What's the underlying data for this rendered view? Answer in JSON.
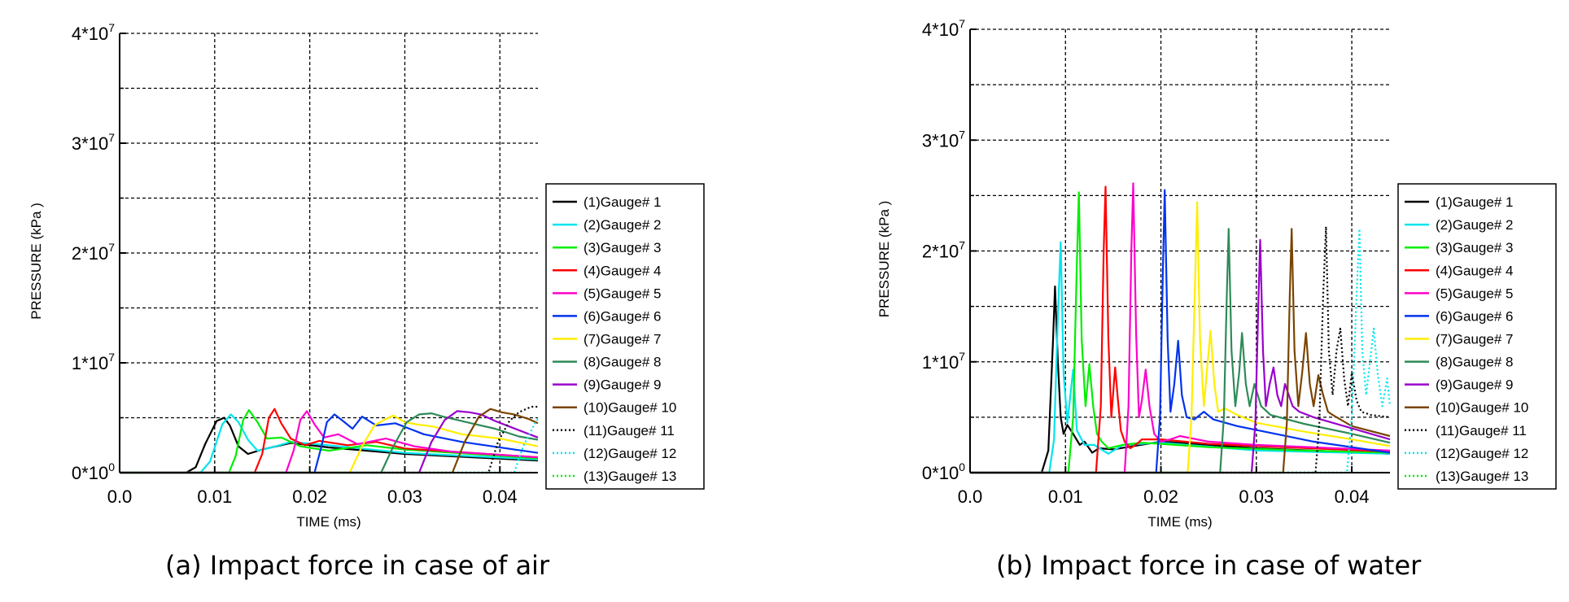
{
  "captions": {
    "air": "(a) Impact force in case of air",
    "water": "(b) Impact force in case of water"
  },
  "chart_data": [
    {
      "type": "line",
      "title": "",
      "caption": "(a) Impact force in case of air",
      "xlabel": "TIME (ms)",
      "ylabel": "PRESSURE (kPa )",
      "xlim": [
        0,
        0.044
      ],
      "ylim": [
        0,
        40000000
      ],
      "x_ticks": [
        "0.0",
        "0.01",
        "0.02",
        "0.03",
        "0.04"
      ],
      "y_ticks": [
        {
          "base": "0*10",
          "exp": "0"
        },
        {
          "base": "1*10",
          "exp": "7"
        },
        {
          "base": "2*10",
          "exp": "7"
        },
        {
          "base": "3*10",
          "exp": "7"
        },
        {
          "base": "4*10",
          "exp": "7"
        }
      ],
      "grid": "dashed",
      "legend_position": "right",
      "series": [
        {
          "name": "(1)Gauge# 1",
          "color": "#000000",
          "style": "solid",
          "x": [
            0,
            0.007,
            0.008,
            0.009,
            0.0102,
            0.011,
            0.0116,
            0.0125,
            0.0135,
            0.015,
            0.018,
            0.022,
            0.03,
            0.044
          ],
          "y": [
            0,
            0,
            500000,
            2600000,
            4700000,
            5000000,
            4300000,
            2400000,
            1700000,
            2100000,
            2700000,
            2300000,
            1700000,
            1100000
          ]
        },
        {
          "name": "(2)Gauge# 2",
          "color": "#00e5ee",
          "style": "solid",
          "x": [
            0,
            0.0085,
            0.0095,
            0.0108,
            0.0117,
            0.0125,
            0.0135,
            0.0145,
            0.016,
            0.018,
            0.022,
            0.03,
            0.044
          ],
          "y": [
            0,
            0,
            1000000,
            4400000,
            5300000,
            4600000,
            3000000,
            2000000,
            2300000,
            2800000,
            2500000,
            1800000,
            1200000
          ]
        },
        {
          "name": "(3)Gauge# 3",
          "color": "#00ee00",
          "style": "solid",
          "x": [
            0,
            0.0115,
            0.0122,
            0.013,
            0.0136,
            0.0145,
            0.0155,
            0.017,
            0.019,
            0.022,
            0.026,
            0.03,
            0.044
          ],
          "y": [
            0,
            0,
            1500000,
            4800000,
            5700000,
            4600000,
            3100000,
            3200000,
            2400000,
            2000000,
            2500000,
            2100000,
            1300000
          ]
        },
        {
          "name": "(4)Gauge# 4",
          "color": "#ff0000",
          "style": "solid",
          "x": [
            0,
            0.0142,
            0.015,
            0.0157,
            0.0163,
            0.017,
            0.018,
            0.0195,
            0.021,
            0.024,
            0.027,
            0.03,
            0.044
          ],
          "y": [
            0,
            0,
            1700000,
            5000000,
            5800000,
            4500000,
            3100000,
            2500000,
            2900000,
            2500000,
            2800000,
            2200000,
            1400000
          ]
        },
        {
          "name": "(5)Gauge# 5",
          "color": "#ff00cc",
          "style": "solid",
          "x": [
            0,
            0.0175,
            0.0183,
            0.019,
            0.0197,
            0.0205,
            0.0215,
            0.023,
            0.025,
            0.028,
            0.031,
            0.035,
            0.044
          ],
          "y": [
            0,
            0,
            2000000,
            4800000,
            5600000,
            4400000,
            3200000,
            3500000,
            2600000,
            3100000,
            2400000,
            1900000,
            1400000
          ]
        },
        {
          "name": "(6)Gauge# 6",
          "color": "#0033ee",
          "style": "solid",
          "x": [
            0,
            0.0205,
            0.0212,
            0.0218,
            0.0226,
            0.0235,
            0.0245,
            0.0255,
            0.027,
            0.029,
            0.032,
            0.036,
            0.044
          ],
          "y": [
            0,
            0,
            2300000,
            4600000,
            5300000,
            4700000,
            4000000,
            5100000,
            4300000,
            4500000,
            3500000,
            2800000,
            1800000
          ]
        },
        {
          "name": "(7)Gauge# 7",
          "color": "#ffee00",
          "style": "solid",
          "x": [
            0,
            0.0242,
            0.0255,
            0.0268,
            0.0278,
            0.0288,
            0.03,
            0.0312,
            0.033,
            0.036,
            0.04,
            0.044
          ],
          "y": [
            0,
            0,
            2400000,
            4300000,
            4800000,
            5200000,
            4600000,
            4400000,
            4200000,
            3500000,
            3100000,
            2400000
          ]
        },
        {
          "name": "(8)Gauge# 8",
          "color": "#2e8b57",
          "style": "solid",
          "x": [
            0,
            0.0275,
            0.0288,
            0.0302,
            0.0315,
            0.0328,
            0.034,
            0.0355,
            0.037,
            0.0395,
            0.042,
            0.044
          ],
          "y": [
            0,
            0,
            2400000,
            4600000,
            5300000,
            5400000,
            5100000,
            4800000,
            4500000,
            4000000,
            3300000,
            3000000
          ]
        },
        {
          "name": "(9)Gauge# 9",
          "color": "#9900cc",
          "style": "solid",
          "x": [
            0,
            0.0315,
            0.0328,
            0.0342,
            0.0355,
            0.0368,
            0.038,
            0.0395,
            0.041,
            0.044
          ],
          "y": [
            0,
            0,
            2800000,
            4800000,
            5600000,
            5500000,
            5300000,
            4700000,
            4200000,
            3200000
          ]
        },
        {
          "name": "(10)Gauge# 10",
          "color": "#7a4400",
          "style": "solid",
          "x": [
            0,
            0.035,
            0.0363,
            0.0378,
            0.039,
            0.0402,
            0.0415,
            0.043,
            0.044
          ],
          "y": [
            0,
            0,
            2800000,
            5100000,
            5800000,
            5500000,
            5300000,
            4900000,
            4500000
          ]
        },
        {
          "name": "(11)Gauge# 11",
          "color": "#000000",
          "style": "dotted",
          "x": [
            0,
            0.0388,
            0.0398,
            0.041,
            0.042,
            0.0433,
            0.044
          ],
          "y": [
            0,
            0,
            2800000,
            4700000,
            5500000,
            6000000,
            6000000
          ]
        },
        {
          "name": "(12)Gauge# 12",
          "color": "#00e5ee",
          "style": "dotted",
          "x": [
            0,
            0.0415,
            0.0425,
            0.0437,
            0.044
          ],
          "y": [
            0,
            0,
            2500000,
            4500000,
            4900000
          ]
        },
        {
          "name": "(13)Gauge# 13",
          "color": "#00ee00",
          "style": "dotted",
          "x": [
            0,
            0.044
          ],
          "y": [
            0,
            0
          ]
        }
      ]
    },
    {
      "type": "line",
      "title": "",
      "caption": "(b) Impact force in case of water",
      "xlabel": "TIME (ms)",
      "ylabel": "PRESSURE (kPa )",
      "xlim": [
        0,
        0.044
      ],
      "ylim": [
        0,
        40000000
      ],
      "x_ticks": [
        "0.0",
        "0.01",
        "0.02",
        "0.03",
        "0.04"
      ],
      "y_ticks": [
        {
          "base": "0*10",
          "exp": "0"
        },
        {
          "base": "1*10",
          "exp": "7"
        },
        {
          "base": "2*10",
          "exp": "7"
        },
        {
          "base": "3*10",
          "exp": "7"
        },
        {
          "base": "4*10",
          "exp": "7"
        }
      ],
      "grid": "dashed",
      "legend_position": "right",
      "series": [
        {
          "name": "(1)Gauge# 1",
          "color": "#000000",
          "style": "solid",
          "x": [
            0,
            0.0075,
            0.0082,
            0.0087,
            0.0089,
            0.0092,
            0.0095,
            0.0098,
            0.0102,
            0.0108,
            0.0115,
            0.012,
            0.0128,
            0.0135,
            0.015,
            0.02,
            0.03,
            0.044
          ],
          "y": [
            0,
            0,
            2000000,
            12000000,
            16800000,
            10000000,
            5000000,
            3500000,
            4300000,
            3500000,
            2500000,
            2800000,
            1800000,
            2200000,
            2100000,
            2800000,
            2200000,
            1700000
          ]
        },
        {
          "name": "(2)Gauge# 2",
          "color": "#00e5ee",
          "style": "solid",
          "x": [
            0,
            0.0083,
            0.0088,
            0.0092,
            0.0095,
            0.0098,
            0.0102,
            0.0108,
            0.0112,
            0.012,
            0.013,
            0.0145,
            0.016,
            0.02,
            0.03,
            0.044
          ],
          "y": [
            0,
            0,
            3000000,
            14000000,
            20800000,
            9000000,
            4500000,
            9300000,
            3800000,
            2500000,
            2500000,
            1700000,
            2500000,
            2700000,
            2000000,
            1700000
          ]
        },
        {
          "name": "(3)Gauge# 3",
          "color": "#00ee00",
          "style": "solid",
          "x": [
            0,
            0.0103,
            0.0108,
            0.0112,
            0.0114,
            0.0117,
            0.0121,
            0.0125,
            0.0129,
            0.0133,
            0.0138,
            0.0145,
            0.016,
            0.018,
            0.02,
            0.025,
            0.035,
            0.044
          ],
          "y": [
            0,
            0,
            5000000,
            19000000,
            25300000,
            12000000,
            6000000,
            9800000,
            6000000,
            3500000,
            2800000,
            2200000,
            2500000,
            2700000,
            2600000,
            2300000,
            2000000,
            1800000
          ]
        },
        {
          "name": "(4)Gauge# 4",
          "color": "#ff0000",
          "style": "solid",
          "x": [
            0,
            0.0132,
            0.0137,
            0.014,
            0.0142,
            0.0145,
            0.0148,
            0.0152,
            0.0155,
            0.0158,
            0.0162,
            0.0168,
            0.0175,
            0.018,
            0.02,
            0.025,
            0.03,
            0.044
          ],
          "y": [
            0,
            0,
            6000000,
            20000000,
            25800000,
            12000000,
            5000000,
            9500000,
            6500000,
            3800000,
            2800000,
            2200000,
            2600000,
            3000000,
            3000000,
            2600000,
            2400000,
            1900000
          ]
        },
        {
          "name": "(5)Gauge# 5",
          "color": "#ff00cc",
          "style": "solid",
          "x": [
            0,
            0.0162,
            0.0166,
            0.0169,
            0.0171,
            0.0174,
            0.0177,
            0.018,
            0.0184,
            0.0188,
            0.0193,
            0.02,
            0.021,
            0.022,
            0.025,
            0.03,
            0.044
          ],
          "y": [
            0,
            0,
            6000000,
            20000000,
            26100000,
            12500000,
            5000000,
            6500000,
            9300000,
            6000000,
            3500000,
            2800000,
            3000000,
            3300000,
            2800000,
            2500000,
            2000000
          ]
        },
        {
          "name": "(6)Gauge# 6",
          "color": "#0033ee",
          "style": "solid",
          "x": [
            0,
            0.0195,
            0.0199,
            0.0202,
            0.0204,
            0.0207,
            0.021,
            0.0214,
            0.0218,
            0.0222,
            0.0227,
            0.0235,
            0.0245,
            0.0255,
            0.028,
            0.032,
            0.036,
            0.044
          ],
          "y": [
            0,
            0,
            5000000,
            18000000,
            25500000,
            12000000,
            5500000,
            8000000,
            11900000,
            7000000,
            5000000,
            4800000,
            5500000,
            4800000,
            4200000,
            3500000,
            2800000,
            1800000
          ]
        },
        {
          "name": "(7)Gauge# 7",
          "color": "#ffee00",
          "style": "solid",
          "x": [
            0,
            0.0228,
            0.0232,
            0.0236,
            0.0238,
            0.0241,
            0.0245,
            0.0249,
            0.0252,
            0.0256,
            0.026,
            0.0267,
            0.028,
            0.03,
            0.035,
            0.04,
            0.044
          ],
          "y": [
            0,
            0,
            5000000,
            18000000,
            24400000,
            12000000,
            6000000,
            10000000,
            12800000,
            8000000,
            5500000,
            5800000,
            5200000,
            4500000,
            3700000,
            3000000,
            2400000
          ]
        },
        {
          "name": "(8)Gauge# 8",
          "color": "#2e8b57",
          "style": "solid",
          "x": [
            0,
            0.0262,
            0.0266,
            0.0269,
            0.0271,
            0.0274,
            0.0278,
            0.0282,
            0.0285,
            0.0289,
            0.0293,
            0.0298,
            0.0305,
            0.0315,
            0.035,
            0.04,
            0.044
          ],
          "y": [
            0,
            0,
            5000000,
            16000000,
            22000000,
            11000000,
            6000000,
            9000000,
            12600000,
            8000000,
            6000000,
            8000000,
            6000000,
            5200000,
            4400000,
            3500000,
            2700000
          ]
        },
        {
          "name": "(9)Gauge# 9",
          "color": "#9900cc",
          "style": "solid",
          "x": [
            0,
            0.0295,
            0.0299,
            0.0302,
            0.0304,
            0.0307,
            0.031,
            0.0314,
            0.0318,
            0.0322,
            0.0326,
            0.033,
            0.0338,
            0.0345,
            0.036,
            0.04,
            0.044
          ],
          "y": [
            0,
            0,
            4500000,
            15000000,
            21000000,
            11000000,
            6000000,
            8000000,
            9500000,
            7000000,
            6000000,
            8000000,
            6000000,
            5500000,
            5000000,
            4000000,
            3000000
          ]
        },
        {
          "name": "(10)Gauge# 10",
          "color": "#7a4400",
          "style": "solid",
          "x": [
            0,
            0.0328,
            0.0332,
            0.0335,
            0.0337,
            0.034,
            0.0344,
            0.0348,
            0.0352,
            0.0356,
            0.036,
            0.0365,
            0.037,
            0.0375,
            0.038,
            0.04,
            0.044
          ],
          "y": [
            0,
            0,
            4500000,
            16000000,
            22000000,
            11000000,
            6000000,
            9000000,
            12600000,
            8000000,
            6000000,
            8800000,
            7000000,
            5500000,
            5200000,
            4200000,
            3300000
          ]
        },
        {
          "name": "(11)Gauge# 11",
          "color": "#000000",
          "style": "dotted",
          "x": [
            0,
            0.0362,
            0.0366,
            0.037,
            0.0373,
            0.0376,
            0.038,
            0.0384,
            0.0388,
            0.0392,
            0.0396,
            0.04,
            0.0405,
            0.041,
            0.042,
            0.044
          ],
          "y": [
            0,
            0,
            4500000,
            16000000,
            22200000,
            11000000,
            7000000,
            11000000,
            13000000,
            8500000,
            6000000,
            9000000,
            6500000,
            5500000,
            5200000,
            5000000
          ]
        },
        {
          "name": "(12)Gauge# 12",
          "color": "#00e5ee",
          "style": "dotted",
          "x": [
            0,
            0.0395,
            0.04,
            0.0405,
            0.0408,
            0.0411,
            0.0415,
            0.0419,
            0.0423,
            0.0427,
            0.0432,
            0.0437,
            0.044
          ],
          "y": [
            0,
            0,
            5000000,
            16000000,
            22000000,
            11000000,
            7000000,
            10000000,
            13000000,
            9000000,
            6000000,
            8500000,
            6000000
          ]
        },
        {
          "name": "(13)Gauge# 13",
          "color": "#00ee00",
          "style": "dotted",
          "x": [
            0,
            0.044
          ],
          "y": [
            0,
            0
          ]
        }
      ]
    }
  ]
}
